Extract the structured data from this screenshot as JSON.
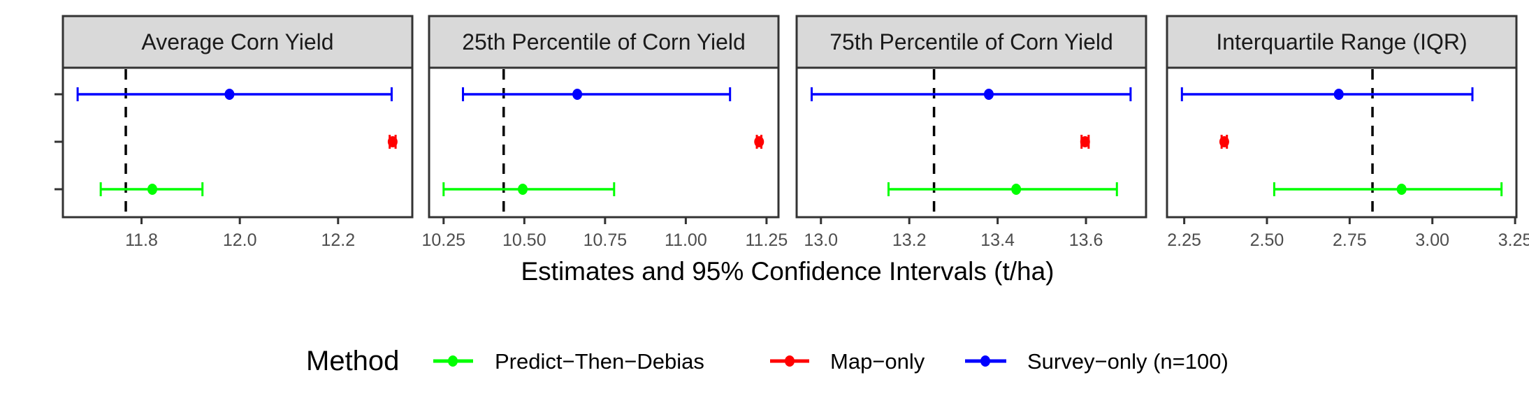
{
  "chart_data": {
    "type": "forest-plot",
    "xlabel": "Estimates and 95% Confidence Intervals (t/ha)",
    "legend": {
      "title": "Method",
      "placement": "bottom",
      "entries": [
        {
          "name": "Predict−Then−Debias",
          "color": "#00ff00"
        },
        {
          "name": "Map−only",
          "color": "#ff0000"
        },
        {
          "name": "Survey−only (n=100)",
          "color": "#0000ff"
        }
      ]
    },
    "rows_top_to_bottom": [
      "Survey−only (n=100)",
      "Map−only",
      "Predict−Then−Debias"
    ],
    "panels": [
      {
        "title": "Average Corn Yield",
        "xlim": [
          11.64,
          12.351
        ],
        "xticks": [
          11.8,
          12.0,
          12.2
        ],
        "xtick_labels": [
          "11.8",
          "12.0",
          "12.2"
        ],
        "reference_line": 11.768,
        "series": [
          {
            "method": "Survey−only (n=100)",
            "color": "#0000ff",
            "estimate": 11.979,
            "lo": 11.67,
            "hi": 12.309
          },
          {
            "method": "Map−only",
            "color": "#ff0000",
            "estimate": 12.311,
            "lo": 12.305,
            "hi": 12.317
          },
          {
            "method": "Predict−Then−Debias",
            "color": "#00ff00",
            "estimate": 11.822,
            "lo": 11.717,
            "hi": 11.924
          }
        ]
      },
      {
        "title": "25th Percentile of Corn Yield",
        "xlim": [
          10.205,
          11.287
        ],
        "xticks": [
          10.25,
          10.5,
          10.75,
          11.0,
          11.25
        ],
        "xtick_labels": [
          "10.25",
          "10.50",
          "10.75",
          "11.00",
          "11.25"
        ],
        "reference_line": 10.436,
        "series": [
          {
            "method": "Survey−only (n=100)",
            "color": "#0000ff",
            "estimate": 10.664,
            "lo": 10.31,
            "hi": 11.137
          },
          {
            "method": "Map−only",
            "color": "#ff0000",
            "estimate": 11.227,
            "lo": 11.22,
            "hi": 11.234
          },
          {
            "method": "Predict−Then−Debias",
            "color": "#00ff00",
            "estimate": 10.495,
            "lo": 10.25,
            "hi": 10.778
          }
        ]
      },
      {
        "title": "75th Percentile of Corn Yield",
        "xlim": [
          12.945,
          13.736
        ],
        "xticks": [
          13.0,
          13.2,
          13.4,
          13.6
        ],
        "xtick_labels": [
          "13.0",
          "13.2",
          "13.4",
          "13.6"
        ],
        "reference_line": 13.256,
        "series": [
          {
            "method": "Survey−only (n=100)",
            "color": "#0000ff",
            "estimate": 13.38,
            "lo": 12.979,
            "hi": 13.701
          },
          {
            "method": "Map−only",
            "color": "#ff0000",
            "estimate": 13.598,
            "lo": 13.59,
            "hi": 13.606
          },
          {
            "method": "Predict−Then−Debias",
            "color": "#00ff00",
            "estimate": 13.442,
            "lo": 13.153,
            "hi": 13.67
          }
        ]
      },
      {
        "title": "Interquartile Range (IQR)",
        "xlim": [
          2.198,
          3.254
        ],
        "xticks": [
          2.25,
          2.5,
          2.75,
          3.0,
          3.25
        ],
        "xtick_labels": [
          "2.25",
          "2.50",
          "2.75",
          "3.00",
          "3.25"
        ],
        "reference_line": 2.819,
        "series": [
          {
            "method": "Survey−only (n=100)",
            "color": "#0000ff",
            "estimate": 2.717,
            "lo": 2.243,
            "hi": 3.121
          },
          {
            "method": "Map−only",
            "color": "#ff0000",
            "estimate": 2.371,
            "lo": 2.363,
            "hi": 2.379
          },
          {
            "method": "Predict−Then−Debias",
            "color": "#00ff00",
            "estimate": 2.907,
            "lo": 2.522,
            "hi": 3.209
          }
        ]
      }
    ]
  }
}
